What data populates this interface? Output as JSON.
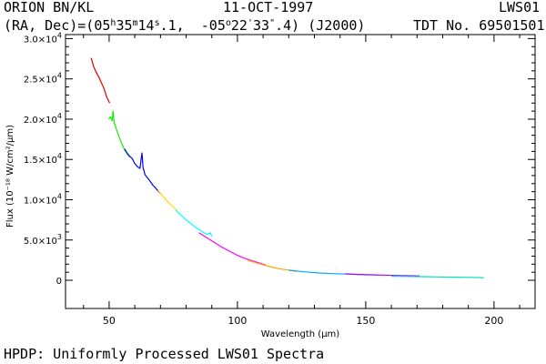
{
  "header": {
    "object": "ORION BN/KL",
    "date": "11-OCT-1997",
    "instrument": "LWS01",
    "coords_prefix": "(RA, Dec)=(05",
    "ra_h_unit": "h",
    "ra_m_value": "35",
    "ra_m_unit": "m",
    "ra_s_value": "14",
    "ra_s_unit": "s",
    "ra_s_frac": ".1,  -05",
    "dec_deg_unit": "o",
    "dec_min": "22",
    "dec_min_unit": "'",
    "dec_sec": "33",
    "dec_sec_unit": "\"",
    "dec_tail": ".4) (J2000)",
    "tdt": "TDT No. 69501501"
  },
  "footer": "HPDP: Uniformly Processed LWS01 Spectra",
  "chart_data": {
    "type": "line",
    "xlabel": "Wavelength (μm)",
    "ylabel": "Flux (10⁻¹⁸ W/cm²/μm)",
    "xlim": [
      33,
      216
    ],
    "ylim": [
      -3500,
      30500
    ],
    "x_ticks": [
      {
        "value": 50,
        "label": "50"
      },
      {
        "value": 100,
        "label": "100"
      },
      {
        "value": 150,
        "label": "150"
      },
      {
        "value": 200,
        "label": "200"
      }
    ],
    "y_ticks": [
      {
        "value": 0,
        "mant": "0",
        "exp": ""
      },
      {
        "value": 5000,
        "mant": "5.0×10",
        "exp": "3"
      },
      {
        "value": 10000,
        "mant": "1.0×10",
        "exp": "4"
      },
      {
        "value": 15000,
        "mant": "1.5×10",
        "exp": "4"
      },
      {
        "value": 20000,
        "mant": "2.0×10",
        "exp": "4"
      },
      {
        "value": 25000,
        "mant": "2.5×10",
        "exp": "4"
      },
      {
        "value": 30000,
        "mant": "3.0×10",
        "exp": "4"
      }
    ],
    "grid": false,
    "series": [
      {
        "color": "#e00000",
        "x": [
          43.0,
          44.0,
          45.0,
          46.0,
          47.0,
          48.0,
          49.0,
          50.2
        ],
        "y": [
          27600,
          26500,
          25800,
          25200,
          24500,
          23800,
          22800,
          22000
        ]
      },
      {
        "color": "#10ee00",
        "x": [
          49.8,
          50.5,
          51.2,
          51.5,
          52.0,
          53.0,
          54.0,
          55.0,
          56.0,
          57.0,
          58.0
        ],
        "y": [
          20000,
          20300,
          19800,
          21000,
          19500,
          18600,
          17700,
          16900,
          16200,
          15700,
          15300
        ]
      },
      {
        "color": "#0000ff",
        "x": [
          56.0,
          57.0,
          58.0,
          59.0,
          60.0,
          61.0,
          62.0,
          62.8,
          63.2,
          64.0,
          65.0,
          66.0,
          67.0,
          68.0,
          69.0,
          70.0
        ],
        "y": [
          16300,
          15800,
          15400,
          15100,
          14500,
          14100,
          13900,
          15800,
          14000,
          13100,
          12700,
          12300,
          11800,
          11500,
          11100,
          10800
        ]
      },
      {
        "color": "#ffd700",
        "x": [
          69.0,
          71.0,
          73.0,
          75.0,
          76.5
        ],
        "y": [
          11200,
          10400,
          9700,
          9100,
          8600
        ]
      },
      {
        "color": "#00ffff",
        "x": [
          76.0,
          78.0,
          80.0,
          82.0,
          84.0,
          86.0,
          88.0,
          89.5,
          90.0
        ],
        "y": [
          8700,
          8100,
          7500,
          7000,
          6500,
          6100,
          5700,
          5900,
          5400
        ]
      },
      {
        "color": "#ff00ff",
        "x": [
          85.0,
          88.0,
          91.0,
          94.0,
          97.0,
          100.0,
          103.0,
          106.0,
          109.0,
          111.0
        ],
        "y": [
          5900,
          5300,
          4700,
          4100,
          3600,
          3100,
          2700,
          2400,
          2100,
          1900
        ]
      },
      {
        "color": "#ffa500",
        "x": [
          104.0,
          108.0,
          112.0,
          116.0,
          120.0,
          123.0
        ],
        "y": [
          2500,
          2100,
          1750,
          1450,
          1250,
          1100
        ]
      },
      {
        "color": "#00aaff",
        "x": [
          120.0,
          126.0,
          132.0,
          138.0,
          144.0,
          150.0,
          155.0
        ],
        "y": [
          1250,
          1050,
          900,
          820,
          760,
          700,
          660
        ]
      },
      {
        "color": "#b000ff",
        "x": [
          142.0,
          147.0,
          152.0,
          157.0,
          162.0,
          167.0,
          171.0
        ],
        "y": [
          800,
          720,
          680,
          640,
          600,
          570,
          540
        ]
      },
      {
        "color": "#00e0c0",
        "x": [
          160.0,
          166.0,
          172.0,
          178.0,
          184.0,
          190.0,
          196.0
        ],
        "y": [
          500,
          480,
          450,
          420,
          390,
          360,
          330
        ]
      }
    ]
  }
}
